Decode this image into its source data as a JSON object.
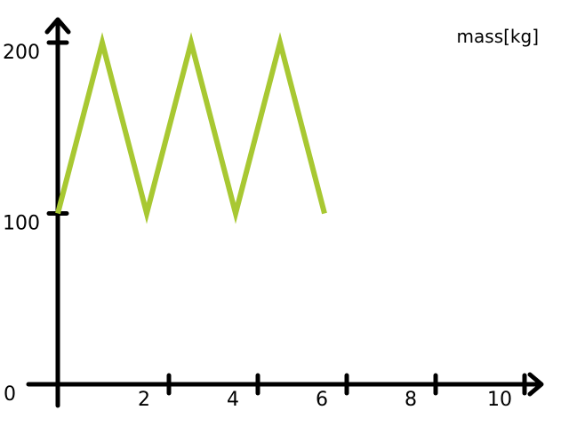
{
  "chart_data": {
    "type": "line",
    "title": "",
    "xlabel": "",
    "ylabel": "mass[kg]",
    "origin_label": "0",
    "xlim": [
      0,
      11
    ],
    "ylim": [
      0,
      200
    ],
    "x_ticks": [
      2.5,
      4.5,
      6.5,
      8.5,
      10.5
    ],
    "x_tick_labels": [
      "2",
      "4",
      "6",
      "8",
      "10"
    ],
    "y_ticks": [
      100,
      200
    ],
    "y_tick_labels": [
      "100",
      "200"
    ],
    "grid": false,
    "series": [
      {
        "color": "#a8c832",
        "x": [
          0,
          1,
          2,
          3,
          4,
          5,
          6
        ],
        "y": [
          100,
          200,
          100,
          200,
          100,
          200,
          100
        ]
      }
    ]
  }
}
